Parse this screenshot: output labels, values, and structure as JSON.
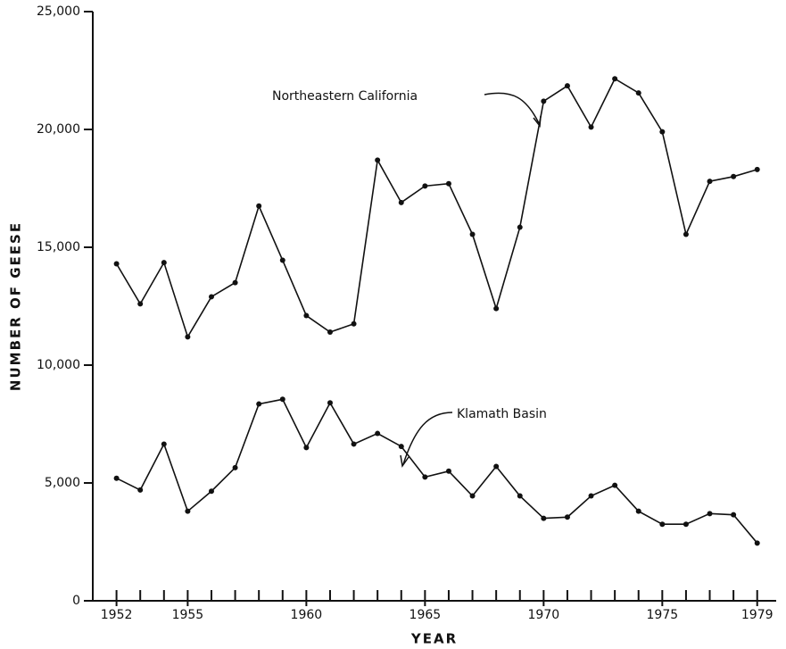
{
  "chart_data": {
    "type": "line",
    "x_label": "YEAR",
    "y_label": "NUMBER OF GEESE",
    "x": [
      1952,
      1953,
      1954,
      1955,
      1956,
      1957,
      1958,
      1959,
      1960,
      1961,
      1962,
      1963,
      1964,
      1965,
      1966,
      1967,
      1968,
      1969,
      1970,
      1971,
      1972,
      1973,
      1974,
      1975,
      1976,
      1977,
      1978,
      1979
    ],
    "series": [
      {
        "name": "Northeastern California",
        "color": "#111111",
        "values": [
          14300,
          12600,
          14350,
          11200,
          12900,
          13500,
          16750,
          14450,
          12100,
          11400,
          11750,
          18700,
          16900,
          17600,
          17700,
          15550,
          12400,
          15850,
          21200,
          21850,
          20100,
          22150,
          21550,
          19900,
          15550,
          17800,
          18000,
          18300
        ]
      },
      {
        "name": "Klamath Basin",
        "color": "#111111",
        "values": [
          5200,
          4700,
          6650,
          3800,
          4650,
          5650,
          8350,
          8550,
          6500,
          8400,
          6650,
          7100,
          6550,
          5250,
          5500,
          4450,
          5700,
          4450,
          3500,
          3550,
          4450,
          4900,
          3800,
          3250,
          3250,
          3700,
          3650,
          2450
        ]
      }
    ],
    "xlim": [
      1951,
      1979.8
    ],
    "xticks": [
      1952,
      1955,
      1960,
      1965,
      1970,
      1975,
      1979
    ],
    "ylim": [
      0,
      25000
    ],
    "yticks": [
      0,
      {
        "value": 5000,
        "label": "5,000"
      },
      {
        "value": 10000,
        "label": "10,000"
      },
      {
        "value": 15000,
        "label": "15,000"
      },
      {
        "value": 20000,
        "label": "20,000"
      },
      {
        "value": 25000,
        "label": "25,000"
      }
    ],
    "grid": false
  }
}
